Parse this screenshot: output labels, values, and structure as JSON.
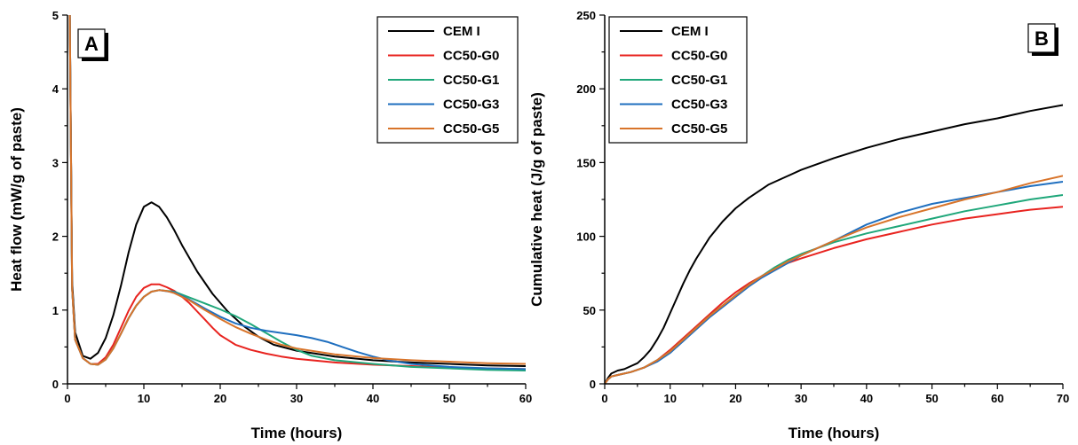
{
  "chart_data": [
    {
      "panel": "A",
      "type": "line",
      "xlabel": "Time (hours)",
      "ylabel": "Heat flow (mW/g of paste)",
      "xlim": [
        0,
        60
      ],
      "ylim": [
        0,
        5
      ],
      "xticks": [
        0,
        10,
        20,
        30,
        40,
        50,
        60
      ],
      "yticks": [
        0,
        1,
        2,
        3,
        4,
        5
      ],
      "grid": false,
      "legend_position": "top-right",
      "series": [
        {
          "name": "CEM I",
          "color": "#000000",
          "x": [
            0.3,
            0.6,
            1,
            2,
            3,
            4,
            5,
            6,
            7,
            8,
            9,
            10,
            11,
            12,
            13,
            14,
            15,
            17,
            19,
            21,
            23,
            25,
            27,
            30,
            35,
            40,
            45,
            50,
            55,
            60
          ],
          "y": [
            5.0,
            1.4,
            0.7,
            0.38,
            0.34,
            0.42,
            0.62,
            0.93,
            1.33,
            1.78,
            2.16,
            2.4,
            2.46,
            2.4,
            2.26,
            2.08,
            1.88,
            1.52,
            1.22,
            0.98,
            0.79,
            0.64,
            0.53,
            0.45,
            0.37,
            0.32,
            0.29,
            0.27,
            0.25,
            0.24
          ]
        },
        {
          "name": "CC50-G0",
          "color": "#e8231f",
          "x": [
            0.3,
            0.6,
            1,
            2,
            3,
            4,
            5,
            6,
            7,
            8,
            9,
            10,
            11,
            12,
            13,
            14,
            15,
            16,
            17,
            18,
            19,
            20,
            22,
            24,
            26,
            28,
            30,
            35,
            40,
            45,
            50,
            55,
            60
          ],
          "y": [
            5.0,
            1.3,
            0.6,
            0.35,
            0.27,
            0.27,
            0.36,
            0.53,
            0.76,
            0.99,
            1.18,
            1.3,
            1.35,
            1.35,
            1.31,
            1.26,
            1.18,
            1.09,
            0.98,
            0.87,
            0.76,
            0.66,
            0.53,
            0.46,
            0.41,
            0.37,
            0.34,
            0.29,
            0.26,
            0.24,
            0.22,
            0.21,
            0.2
          ]
        },
        {
          "name": "CC50-G1",
          "color": "#1fa77a",
          "x": [
            0.3,
            0.6,
            1,
            2,
            3,
            4,
            5,
            6,
            7,
            8,
            9,
            10,
            11,
            12,
            14,
            16,
            18,
            20,
            22,
            24,
            26,
            28,
            30,
            32,
            35,
            40,
            45,
            50,
            55,
            60
          ],
          "y": [
            5.0,
            1.3,
            0.6,
            0.35,
            0.27,
            0.26,
            0.33,
            0.48,
            0.68,
            0.89,
            1.06,
            1.18,
            1.25,
            1.27,
            1.25,
            1.17,
            1.09,
            1.01,
            0.92,
            0.81,
            0.69,
            0.57,
            0.46,
            0.38,
            0.32,
            0.27,
            0.23,
            0.21,
            0.19,
            0.18
          ]
        },
        {
          "name": "CC50-G3",
          "color": "#1f6fbf",
          "x": [
            0.3,
            0.6,
            1,
            2,
            3,
            4,
            5,
            6,
            7,
            8,
            9,
            10,
            11,
            12,
            14,
            16,
            18,
            20,
            22,
            24,
            26,
            28,
            30,
            32,
            34,
            36,
            38,
            40,
            42,
            45,
            50,
            55,
            60
          ],
          "y": [
            5.0,
            1.3,
            0.6,
            0.35,
            0.27,
            0.26,
            0.33,
            0.48,
            0.68,
            0.89,
            1.06,
            1.18,
            1.25,
            1.27,
            1.24,
            1.14,
            1.02,
            0.91,
            0.82,
            0.76,
            0.72,
            0.69,
            0.66,
            0.62,
            0.57,
            0.5,
            0.43,
            0.37,
            0.32,
            0.27,
            0.23,
            0.21,
            0.2
          ]
        },
        {
          "name": "CC50-G5",
          "color": "#d8742a",
          "x": [
            0.3,
            0.6,
            1,
            2,
            3,
            4,
            5,
            6,
            7,
            8,
            9,
            10,
            11,
            12,
            13,
            14,
            16,
            18,
            20,
            22,
            24,
            26,
            28,
            30,
            35,
            40,
            45,
            50,
            55,
            60
          ],
          "y": [
            5.0,
            1.3,
            0.6,
            0.35,
            0.27,
            0.26,
            0.33,
            0.48,
            0.68,
            0.89,
            1.06,
            1.18,
            1.25,
            1.27,
            1.26,
            1.23,
            1.13,
            1.0,
            0.88,
            0.77,
            0.68,
            0.6,
            0.53,
            0.48,
            0.4,
            0.35,
            0.32,
            0.3,
            0.28,
            0.27
          ]
        }
      ],
      "panel_label": "A"
    },
    {
      "panel": "B",
      "type": "line",
      "xlabel": "Time (hours)",
      "ylabel": "Cumulative heat (J/g of paste)",
      "xlim": [
        0,
        70
      ],
      "ylim": [
        0,
        250
      ],
      "xticks": [
        0,
        10,
        20,
        30,
        40,
        50,
        60,
        70
      ],
      "yticks": [
        0,
        50,
        100,
        150,
        200,
        250
      ],
      "grid": false,
      "legend_position": "top-left",
      "series": [
        {
          "name": "CEM I",
          "color": "#000000",
          "x": [
            0,
            0.5,
            1,
            2,
            3,
            4,
            5,
            6,
            7,
            8,
            9,
            10,
            11,
            12,
            13,
            14,
            15,
            16,
            18,
            20,
            22,
            25,
            28,
            30,
            35,
            40,
            45,
            50,
            55,
            60,
            65,
            70
          ],
          "y": [
            0,
            4,
            7,
            9,
            10,
            12,
            14,
            18,
            23,
            30,
            38,
            48,
            58,
            68,
            77,
            85,
            92,
            99,
            110,
            119,
            126,
            135,
            141,
            145,
            153,
            160,
            166,
            171,
            176,
            180,
            185,
            189
          ]
        },
        {
          "name": "CC50-G0",
          "color": "#e8231f",
          "x": [
            0,
            0.5,
            1,
            2,
            4,
            6,
            8,
            10,
            12,
            14,
            16,
            18,
            20,
            22,
            24,
            26,
            28,
            30,
            35,
            40,
            45,
            50,
            55,
            60,
            65,
            70
          ],
          "y": [
            0,
            3,
            5,
            6,
            8,
            11,
            16,
            23,
            31,
            39,
            47,
            55,
            62,
            68,
            73,
            78,
            82,
            85,
            92,
            98,
            103,
            108,
            112,
            115,
            118,
            120
          ]
        },
        {
          "name": "CC50-G1",
          "color": "#1fa77a",
          "x": [
            0,
            0.5,
            1,
            2,
            4,
            6,
            8,
            10,
            12,
            14,
            16,
            18,
            20,
            22,
            24,
            26,
            28,
            30,
            35,
            40,
            45,
            50,
            55,
            60,
            65,
            70
          ],
          "y": [
            0,
            3,
            5,
            6,
            8,
            11,
            16,
            22,
            30,
            38,
            46,
            53,
            60,
            67,
            73,
            79,
            84,
            88,
            96,
            102,
            107,
            112,
            117,
            121,
            125,
            128
          ]
        },
        {
          "name": "CC50-G3",
          "color": "#1f6fbf",
          "x": [
            0,
            0.5,
            1,
            2,
            4,
            6,
            8,
            10,
            12,
            14,
            16,
            18,
            20,
            22,
            24,
            26,
            28,
            30,
            35,
            40,
            45,
            50,
            55,
            60,
            65,
            70
          ],
          "y": [
            0,
            3,
            5,
            6,
            8,
            11,
            15,
            21,
            29,
            37,
            45,
            52,
            59,
            66,
            72,
            77,
            82,
            87,
            97,
            108,
            116,
            122,
            126,
            130,
            134,
            137
          ]
        },
        {
          "name": "CC50-G5",
          "color": "#d8742a",
          "x": [
            0,
            0.5,
            1,
            2,
            4,
            6,
            8,
            10,
            12,
            14,
            16,
            18,
            20,
            22,
            24,
            26,
            28,
            30,
            35,
            40,
            45,
            50,
            55,
            60,
            65,
            70
          ],
          "y": [
            0,
            3,
            5,
            6,
            8,
            11,
            16,
            22,
            30,
            38,
            46,
            53,
            60,
            67,
            73,
            78,
            83,
            87,
            97,
            106,
            113,
            119,
            125,
            130,
            136,
            141
          ]
        }
      ],
      "panel_label": "B"
    }
  ]
}
